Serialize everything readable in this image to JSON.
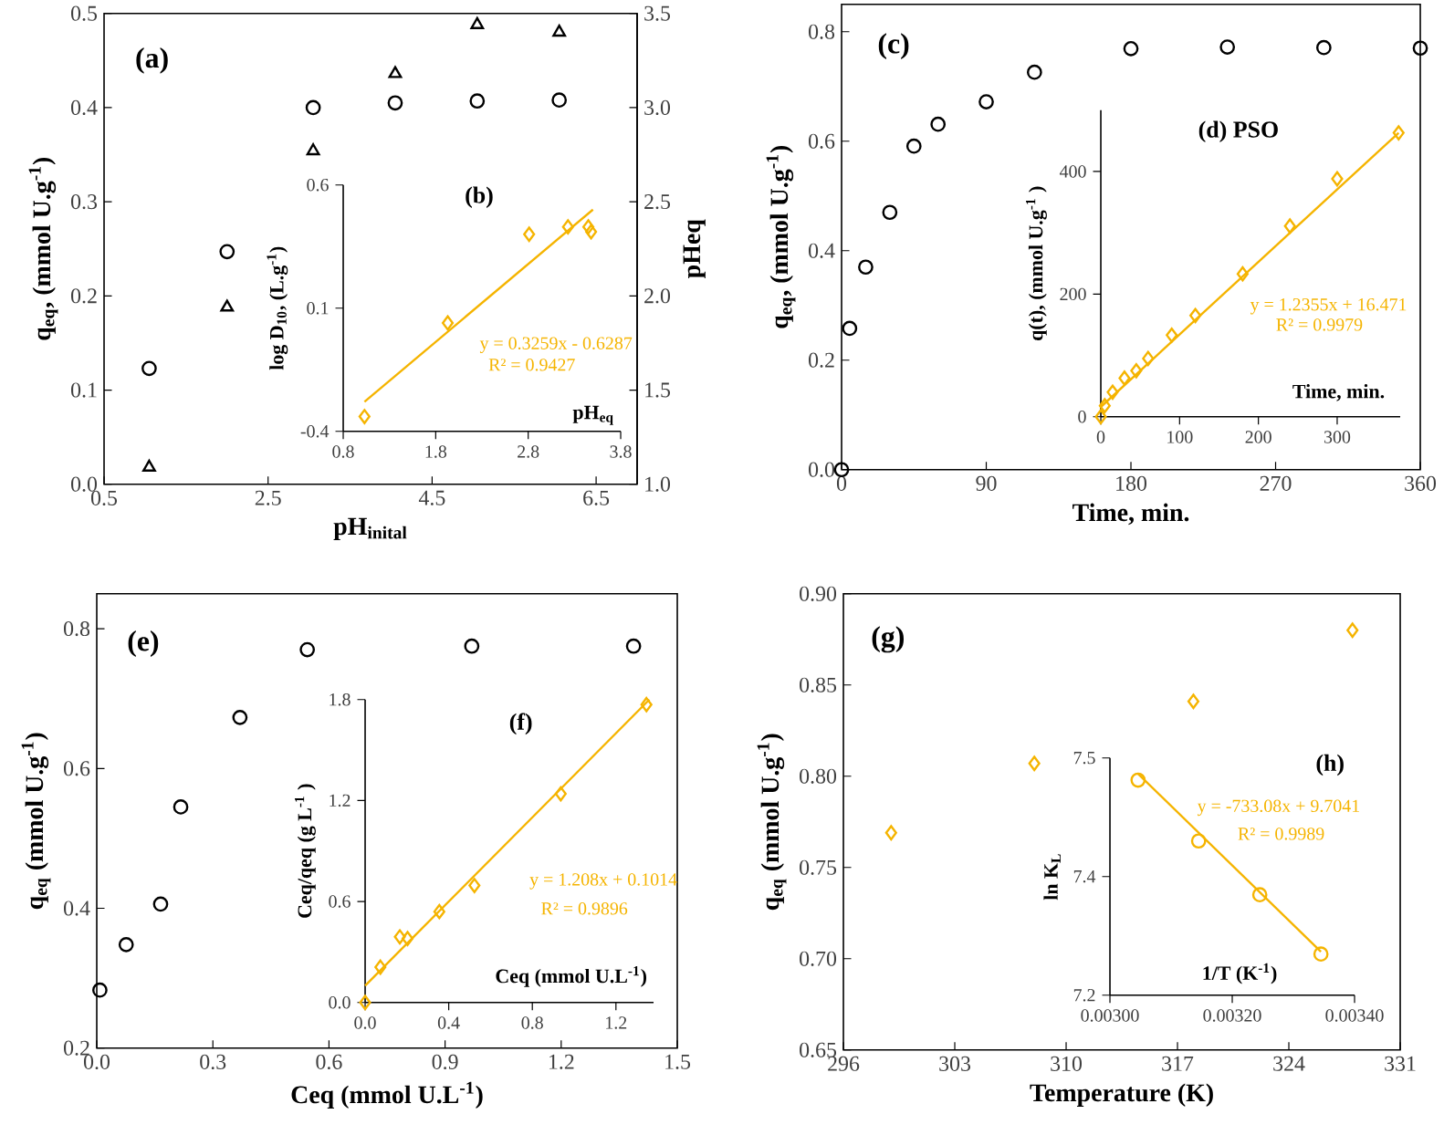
{
  "chart_data": [
    {
      "type": "scatter",
      "xlabel": "pH$_{inital}$",
      "ylabel": "q$_{eq}$, (mmol U.g$^{-1}$)",
      "y2label": "pHeq",
      "xlim": [
        0.5,
        7
      ],
      "xticks": [
        0.5,
        2.5,
        4.5,
        6.5
      ],
      "ylim": [
        0,
        0.5
      ],
      "yticks": [
        {
          "value": 0,
          "label": "0.0"
        },
        0.1,
        0.2,
        0.3,
        0.4,
        0.5
      ],
      "y2lim": [
        1,
        3.5
      ],
      "y2ticks": [
        {
          "value": 1,
          "label": "1.0"
        },
        1.5,
        {
          "value": 2,
          "label": "2.0"
        },
        2.5,
        {
          "value": 3,
          "label": "3.0"
        },
        3.5
      ],
      "series": [
        {
          "marker": "circle",
          "color": "#000000",
          "x": [
            1.05,
            2,
            3.05,
            4.05,
            5.05,
            6.05
          ],
          "values": [
            0.123,
            0.247,
            0.4,
            0.405,
            0.407,
            0.408
          ]
        },
        {
          "marker": "triangle",
          "axis": "y2",
          "color": "#000000",
          "x": [
            1.05,
            2,
            3.05,
            4.05,
            5.05,
            6.05
          ],
          "values": [
            1.09,
            1.94,
            2.77,
            3.18,
            3.44,
            3.4
          ]
        }
      ],
      "annotations": [
        "(a)"
      ]
    },
    {
      "type": "scatter",
      "xlabel": "pH$_{eq}$",
      "ylabel": "log D$_{10}$, (L.g$^{-1}$)",
      "xlim": [
        0.8,
        3.8
      ],
      "xticks": [
        0.8,
        1.8,
        2.8,
        3.8
      ],
      "ylim": [
        -0.4,
        0.6
      ],
      "yticks": [
        -0.4,
        0.1,
        0.6
      ],
      "series": [
        {
          "type": "line",
          "marker": "none",
          "color": "#f5b400",
          "x": [
            1.03,
            3.5
          ],
          "values": [
            -0.28,
            0.5
          ]
        },
        {
          "marker": "diamond",
          "color": "#f5b400",
          "x": [
            1.03,
            1.93,
            2.81,
            3.23,
            3.45,
            3.48
          ],
          "values": [
            -0.34,
            0.04,
            0.4,
            0.43,
            0.43,
            0.41
          ]
        }
      ],
      "annotations": [
        "(b)",
        "y = 0.3259x - 0.6287",
        "R² = 0.9427"
      ]
    },
    {
      "type": "scatter",
      "xlabel": "Time, min.",
      "ylabel": "q$_{eq}$, (mmol U.g$^{-1}$)",
      "xlim": [
        0,
        360
      ],
      "xticks": [
        0,
        90,
        180,
        270,
        360
      ],
      "ylim": [
        0,
        0.85
      ],
      "yticks": [
        {
          "value": 0,
          "label": "0.0"
        },
        0.2,
        0.4,
        0.6,
        0.8
      ],
      "series": [
        {
          "marker": "circle",
          "color": "#000000",
          "x": [
            0,
            5,
            15,
            30,
            45,
            60,
            90,
            120,
            180,
            240,
            300,
            360
          ],
          "values": [
            0,
            0.258,
            0.37,
            0.47,
            0.591,
            0.631,
            0.672,
            0.726,
            0.769,
            0.772,
            0.771,
            0.77
          ]
        }
      ],
      "annotations": [
        "(c)"
      ]
    },
    {
      "type": "scatter",
      "xlabel": "Time, min.",
      "ylabel": "q(t), (mmol U.g$^{-1}$ )",
      "xlim": [
        0,
        380
      ],
      "xticks": [
        0,
        100,
        200,
        300
      ],
      "ylim": [
        0,
        500
      ],
      "yticks": [
        0,
        200,
        400
      ],
      "series": [
        {
          "type": "line",
          "marker": "none",
          "color": "#f5b400",
          "x": [
            0,
            378
          ],
          "values": [
            16,
            463
          ]
        },
        {
          "marker": "diamond",
          "color": "#f5b400",
          "x": [
            0,
            5,
            15,
            30,
            45,
            60,
            90,
            120,
            180,
            240,
            300,
            378
          ],
          "values": [
            0,
            18,
            40,
            63,
            75,
            95,
            133,
            165,
            233,
            311,
            388,
            463
          ]
        }
      ],
      "annotations": [
        "(d) PSO",
        "y = 1.2355x + 16.471",
        "R² = 0.9979"
      ]
    },
    {
      "type": "scatter",
      "xlabel": "Ceq (mmol U.L$^{-1}$)",
      "ylabel": "q$_{eq}$ (mmol U.g$^{-1}$)",
      "xlim": [
        0,
        1.5
      ],
      "xticks": [
        {
          "value": 0,
          "label": "0.0"
        },
        0.3,
        0.6,
        0.9,
        1.2,
        1.5
      ],
      "ylim": [
        0.2,
        0.85
      ],
      "yticks": [
        0.2,
        0.4,
        0.6,
        0.8
      ],
      "series": [
        {
          "marker": "circle",
          "color": "#000000",
          "x": [
            0.008,
            0.076,
            0.165,
            0.217,
            0.37,
            0.544,
            0.969,
            1.387
          ],
          "values": [
            0.283,
            0.348,
            0.406,
            0.545,
            0.673,
            0.77,
            0.775,
            0.775
          ]
        }
      ],
      "annotations": [
        "(e)"
      ]
    },
    {
      "type": "scatter",
      "xlabel": "Ceq (mmol U.L$^{-1}$)",
      "ylabel": "Ceq/qeq (g L$^{-1}$ )",
      "xlim": [
        0,
        1.38
      ],
      "xticks": [
        {
          "value": 0,
          "label": "0.0"
        },
        0.4,
        0.8,
        1.2
      ],
      "ylim": [
        0,
        1.8
      ],
      "yticks": [
        {
          "value": 0,
          "label": "0.0"
        },
        0.6,
        1.2,
        1.8
      ],
      "series": [
        {
          "type": "line",
          "marker": "none",
          "color": "#f5b400",
          "x": [
            0,
            1.36
          ],
          "values": [
            0.1,
            1.8
          ]
        },
        {
          "marker": "diamond",
          "color": "#f5b400",
          "x": [
            0,
            0.073,
            0.166,
            0.203,
            0.355,
            0.523,
            0.936,
            1.346
          ],
          "values": [
            0,
            0.21,
            0.39,
            0.38,
            0.54,
            0.695,
            1.24,
            1.77
          ]
        }
      ],
      "annotations": [
        "(f)",
        "y = 1.208x + 0.1014",
        "R² = 0.9896"
      ]
    },
    {
      "type": "scatter",
      "xlabel": "Temperature (K)",
      "ylabel": "q$_{eq}$ (mmol U.g$^{-1}$)",
      "xlim": [
        296,
        331
      ],
      "xticks": [
        296,
        303,
        310,
        317,
        324,
        331
      ],
      "ylim": [
        0.65,
        0.9
      ],
      "yticks": [
        0.65,
        {
          "value": 0.7,
          "label": "0.70"
        },
        0.75,
        {
          "value": 0.8,
          "label": "0.80"
        },
        0.85,
        {
          "value": 0.9,
          "label": "0.90"
        }
      ],
      "series": [
        {
          "marker": "diamond",
          "color": "#f5b400",
          "x": [
            299,
            308,
            318,
            328
          ],
          "values": [
            0.769,
            0.807,
            0.841,
            0.88
          ]
        }
      ],
      "annotations": [
        "(g)"
      ]
    },
    {
      "type": "scatter",
      "xlabel": "1/T (K$^{-1}$)",
      "ylabel": "ln K$_{L}$",
      "xlim": [
        0.003,
        0.0034
      ],
      "xticks": [
        {
          "value": 0.003,
          "label": "0.00300"
        },
        {
          "value": 0.0032,
          "label": "0.00320"
        },
        {
          "value": 0.0034,
          "label": "0.00340"
        }
      ],
      "ylim": [
        7.2,
        7.5
      ],
      "yticks": [
        7.2,
        {
          "value": 7.35,
          "label": "7.4"
        },
        7.5
      ],
      "series": [
        {
          "type": "line",
          "marker": "none",
          "color": "#f5b400",
          "x": [
            0.003046,
            0.003345
          ],
          "values": [
            7.48,
            7.255
          ]
        },
        {
          "marker": "circle",
          "color": "#f5b400",
          "x": [
            0.003046,
            0.003145,
            0.003245,
            0.003345
          ],
          "values": [
            7.472,
            7.395,
            7.327,
            7.252
          ]
        }
      ],
      "annotations": [
        "(h)",
        "y = -733.08x + 9.7041",
        "R² = 0.9989"
      ]
    }
  ]
}
